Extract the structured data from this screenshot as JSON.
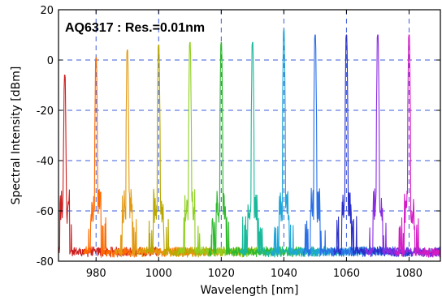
{
  "chart_data": {
    "type": "line",
    "annotation": "AQ6317 : Res.=0.01nm",
    "xlabel": "Wavelength [nm]",
    "ylabel": "Spectral Intensity [dBm]",
    "xlim": [
      968,
      1090
    ],
    "ylim": [
      -80,
      20
    ],
    "xticks": [
      980,
      1000,
      1020,
      1040,
      1060,
      1080
    ],
    "xtick_labels": [
      "980",
      "1000",
      "1020",
      "1040",
      "1060",
      "1080"
    ],
    "yticks": [
      -80,
      -60,
      -40,
      -20,
      0,
      20
    ],
    "ytick_labels": [
      "-80",
      "-60",
      "-40",
      "-20",
      "0",
      "20"
    ],
    "grid": true,
    "noise_floor_dbm": -77,
    "series": [
      {
        "peak_nm": 970,
        "peak_dbm": -6,
        "color": "#cc1f1f"
      },
      {
        "peak_nm": 980,
        "peak_dbm": 1,
        "color": "#ff6a00"
      },
      {
        "peak_nm": 990,
        "peak_dbm": 4,
        "color": "#e39a12"
      },
      {
        "peak_nm": 1000,
        "peak_dbm": 6,
        "color": "#b8a800"
      },
      {
        "peak_nm": 1010,
        "peak_dbm": 7,
        "color": "#8fcf1f"
      },
      {
        "peak_nm": 1020,
        "peak_dbm": 7,
        "color": "#2eb82e"
      },
      {
        "peak_nm": 1030,
        "peak_dbm": 7,
        "color": "#1ab89a"
      },
      {
        "peak_nm": 1040,
        "peak_dbm": 12,
        "color": "#1ea6d8"
      },
      {
        "peak_nm": 1050,
        "peak_dbm": 10,
        "color": "#2a6fe6"
      },
      {
        "peak_nm": 1060,
        "peak_dbm": 10,
        "color": "#2b2fc8"
      },
      {
        "peak_nm": 1070,
        "peak_dbm": 10,
        "color": "#8a2be2"
      },
      {
        "peak_nm": 1080,
        "peak_dbm": 10,
        "color": "#d41cc4"
      }
    ]
  }
}
